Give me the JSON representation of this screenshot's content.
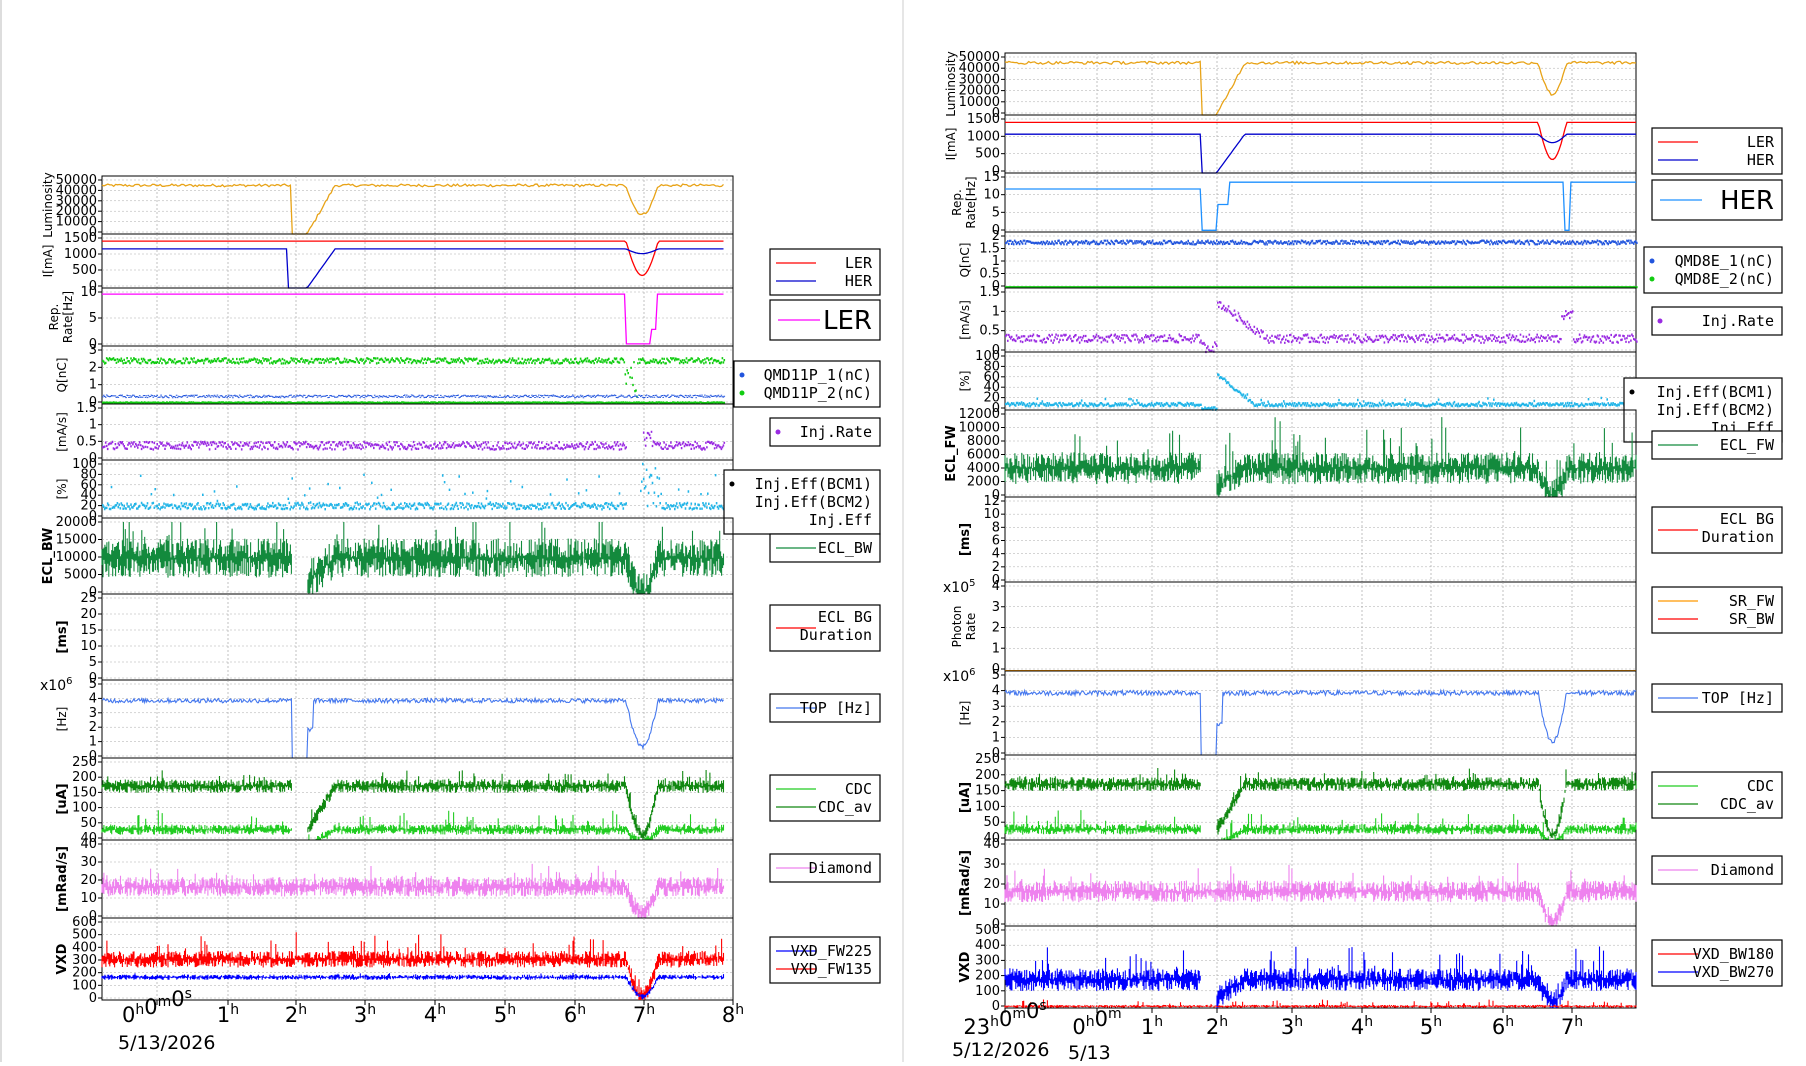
{
  "colors": {
    "luminosity": "#e8a317",
    "ler": "#ff0000",
    "her": "#0000cc",
    "reprate_ler": "#ff00ff",
    "reprate_her": "#1e90ff",
    "q1": "#2255dd",
    "q2": "#11cc11",
    "injrate": "#9a2be2",
    "injeff": "#22b5e8",
    "ecl": "#138a3d",
    "top": "#4477ee",
    "cdc": "#118811",
    "cdc_av": "#22cc22",
    "diamond": "#ee82ee",
    "vxd_blue": "#0000ff",
    "vxd_red": "#ff0000",
    "sr_fw": "#ff9900",
    "sr_bw": "#ff0000"
  },
  "chart_data": [
    {
      "type": "line",
      "panel": "left",
      "date_label": "5/13/2026",
      "time_ticks": [
        "0h0m0s",
        "1h",
        "2h",
        "3h",
        "4h",
        "5h",
        "6h",
        "7h",
        "8h"
      ],
      "rows": [
        {
          "id": "lum",
          "ylabel": "Luminosity",
          "ticks": [
            "50000",
            "40000",
            "30000",
            "20000",
            "10000",
            "0"
          ],
          "ylim": [
            0,
            50000
          ],
          "legend": []
        },
        {
          "id": "cur",
          "ylabel": "I[mA]",
          "ticks": [
            "1500",
            "1000",
            "500",
            "0"
          ],
          "ylim": [
            0,
            1600
          ],
          "legend": [
            "LER",
            "HER"
          ]
        },
        {
          "id": "rep",
          "ylabel": "Rep. Rate[Hz]",
          "ticks": [
            "10",
            "5",
            "0"
          ],
          "ylim": [
            0,
            13
          ],
          "legend": [
            "LER"
          ],
          "legend_big": true
        },
        {
          "id": "q",
          "ylabel": "Q[nC]",
          "ticks": [
            "3",
            "2",
            "1",
            "0"
          ],
          "ylim": [
            0,
            3
          ],
          "legend": [
            "QMD11P_1(nC)",
            "QMD11P_2(nC)"
          ],
          "legend_dots": true
        },
        {
          "id": "ir",
          "ylabel": "[mA/s]",
          "ticks": [
            "1.5",
            "1",
            "0.5",
            "0"
          ],
          "ylim": [
            0,
            2
          ],
          "legend": [
            "Inj.Rate"
          ],
          "legend_dots": true
        },
        {
          "id": "eff",
          "ylabel": "[%]",
          "ticks": [
            "100",
            "80",
            "60",
            "40",
            "20",
            "0"
          ],
          "ylim": [
            0,
            100
          ],
          "legend": [
            "Inj.Eff(BCM1)",
            "Inj.Eff(BCM2)",
            "Inj.Eff"
          ],
          "legend_dots": true
        },
        {
          "id": "ecl",
          "ylabel": "ECL_BW",
          "ticks": [
            "20000",
            "15000",
            "10000",
            "5000",
            "0"
          ],
          "ylim": [
            0,
            22000
          ],
          "legend": [
            "ECL_BW"
          ]
        },
        {
          "id": "bgd",
          "ylabel": "[ms]",
          "ticks": [
            "25",
            "20",
            "15",
            "10",
            "5",
            "0"
          ],
          "ylim": [
            0,
            27
          ],
          "legend": [
            "ECL BG",
            "Duration"
          ],
          "legend_single_line": true
        },
        {
          "id": "top",
          "ylabel": "[Hz]",
          "ticks": [
            "5",
            "4",
            "3",
            "2",
            "1",
            "0"
          ],
          "ylim": [
            0,
            5.8
          ],
          "legend": [
            "TOP [Hz]"
          ],
          "exp": "x10",
          "exp_power": "6"
        },
        {
          "id": "cdc",
          "ylabel": "[uA]",
          "ticks": [
            "250",
            "200",
            "150",
            "100",
            "50",
            "40"
          ],
          "ylim": [
            40,
            250
          ],
          "legend": [
            "CDC",
            "CDC_av"
          ]
        },
        {
          "id": "dia",
          "ylabel": "[mRad/s]",
          "ticks": [
            "40",
            "30",
            "20",
            "10",
            "0"
          ],
          "ylim": [
            0,
            45
          ],
          "legend": [
            "Diamond"
          ]
        },
        {
          "id": "vxd",
          "ylabel": "VXD",
          "ticks": [
            "600",
            "500",
            "400",
            "300",
            "200",
            "100",
            "0"
          ],
          "ylim": [
            0,
            650
          ],
          "legend": [
            "VXD_FW225",
            "VXD_FW135"
          ]
        }
      ]
    },
    {
      "type": "line",
      "panel": "right",
      "date_label": "5/12/2026",
      "date_label2": "5/13",
      "time_ticks": [
        "23h0m0s",
        "0h0m",
        "1h",
        "2h",
        "3h",
        "4h",
        "5h",
        "6h",
        "7h"
      ],
      "rows": [
        {
          "id": "lum",
          "ylabel": "Luminosity",
          "ticks": [
            "50000",
            "40000",
            "30000",
            "20000",
            "10000",
            "0"
          ],
          "ylim": [
            0,
            50000
          ],
          "legend": []
        },
        {
          "id": "cur",
          "ylabel": "I[mA]",
          "ticks": [
            "1500",
            "1000",
            "500",
            "0"
          ],
          "ylim": [
            0,
            1600
          ],
          "legend": [
            "LER",
            "HER"
          ]
        },
        {
          "id": "rep",
          "ylabel": "Rep. Rate[Hz]",
          "ticks": [
            "15",
            "10",
            "5",
            "0"
          ],
          "ylim": [
            0,
            16
          ],
          "legend": [
            "HER"
          ],
          "legend_big": true
        },
        {
          "id": "q",
          "ylabel": "Q[nC]",
          "ticks": [
            "2",
            "1.5",
            "1",
            "0.5",
            "0"
          ],
          "ylim": [
            0,
            2
          ],
          "legend": [
            "QMD8E_1(nC)",
            "QMD8E_2(nC)"
          ],
          "legend_dots": true
        },
        {
          "id": "ir",
          "ylabel": "[mA/s]",
          "ticks": [
            "1.5",
            "1",
            "0.5",
            "0"
          ],
          "ylim": [
            0,
            1.8
          ],
          "legend": [
            "Inj.Rate"
          ],
          "legend_dots": true
        },
        {
          "id": "eff",
          "ylabel": "[%]",
          "ticks": [
            "100",
            "80",
            "60",
            "40",
            "20",
            "0"
          ],
          "ylim": [
            0,
            100
          ],
          "legend": [
            "Inj.Eff(BCM1)",
            "Inj.Eff(BCM2)",
            "Inj.Eff"
          ],
          "legend_dots": true
        },
        {
          "id": "ecl",
          "ylabel": "ECL_FW",
          "ticks": [
            "12000",
            "10000",
            "8000",
            "6000",
            "4000",
            "2000",
            "0"
          ],
          "ylim": [
            0,
            13000
          ],
          "legend": [
            "ECL_FW"
          ]
        },
        {
          "id": "bgd",
          "ylabel": "[ms]",
          "ticks": [
            "12",
            "10",
            "8",
            "6",
            "4",
            "2",
            "0"
          ],
          "ylim": [
            0,
            12
          ],
          "legend": [
            "ECL BG",
            "Duration"
          ],
          "legend_single_line": true
        },
        {
          "id": "sr",
          "ylabel": "Photon Rate",
          "ticks": [
            "4",
            "3",
            "2",
            "1",
            "0"
          ],
          "ylim": [
            0,
            5
          ],
          "legend": [
            "SR_FW",
            "SR_BW"
          ],
          "exp": "x10",
          "exp_power": "5"
        },
        {
          "id": "top",
          "ylabel": "[Hz]",
          "ticks": [
            "5",
            "4",
            "3",
            "2",
            "1",
            "0"
          ],
          "ylim": [
            0,
            5.8
          ],
          "legend": [
            "TOP [Hz]"
          ],
          "exp": "x10",
          "exp_power": "6"
        },
        {
          "id": "cdc",
          "ylabel": "[uA]",
          "ticks": [
            "250",
            "200",
            "150",
            "100",
            "50",
            "40"
          ],
          "ylim": [
            40,
            250
          ],
          "legend": [
            "CDC",
            "CDC_av"
          ]
        },
        {
          "id": "dia",
          "ylabel": "[mRad/s]",
          "ticks": [
            "40",
            "30",
            "20",
            "10",
            "0"
          ],
          "ylim": [
            0,
            45
          ],
          "legend": [
            "Diamond"
          ]
        },
        {
          "id": "vxd",
          "ylabel": "VXD",
          "ticks": [
            "500",
            "400",
            "300",
            "200",
            "100",
            "0"
          ],
          "ylim": [
            0,
            550
          ],
          "legend": [
            "VXD_BW180",
            "VXD_BW270"
          ]
        }
      ]
    }
  ]
}
